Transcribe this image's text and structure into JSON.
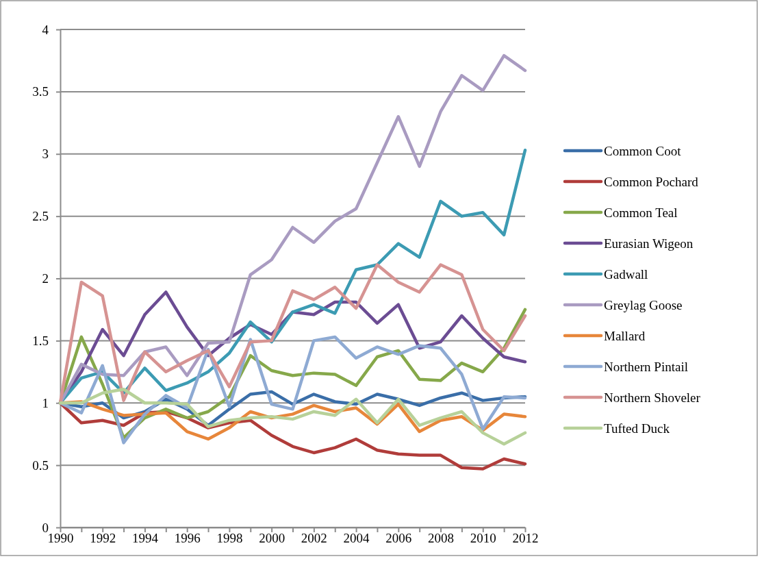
{
  "chart_data": {
    "type": "line",
    "x": [
      1990,
      1991,
      1992,
      1993,
      1994,
      1995,
      1996,
      1997,
      1998,
      1999,
      2000,
      2001,
      2002,
      2003,
      2004,
      2005,
      2006,
      2007,
      2008,
      2009,
      2010,
      2011,
      2012
    ],
    "xlim": [
      1990,
      2012
    ],
    "xticks": [
      1990,
      {
        "value": 1991,
        "label": null
      },
      1992,
      {
        "value": 1993,
        "label": null
      },
      1994,
      {
        "value": 1995,
        "label": null
      },
      1996,
      {
        "value": 1997,
        "label": null
      },
      1998,
      {
        "value": 1999,
        "label": null
      },
      2000,
      {
        "value": 2001,
        "label": null
      },
      2002,
      {
        "value": 2003,
        "label": null
      },
      2004,
      {
        "value": 2005,
        "label": null
      },
      2006,
      {
        "value": 2007,
        "label": null
      },
      2008,
      {
        "value": 2009,
        "label": null
      },
      2010,
      {
        "value": 2011,
        "label": null
      },
      2012
    ],
    "ylim": [
      0,
      4
    ],
    "yticks": [
      0,
      0.5,
      1,
      1.5,
      2,
      2.5,
      3,
      3.5,
      4
    ],
    "grid": "y",
    "legend": "right",
    "marker": "none",
    "line_style": "solid",
    "series": [
      {
        "name": "Common Coot",
        "color": "#3a6ea8",
        "values": [
          1,
          0.97,
          1.0,
          0.88,
          0.93,
          1.03,
          0.95,
          0.82,
          0.95,
          1.07,
          1.09,
          0.99,
          1.07,
          1.01,
          0.99,
          1.07,
          1.03,
          0.98,
          1.04,
          1.08,
          1.02,
          1.04,
          1.05
        ]
      },
      {
        "name": "Common Pochard",
        "color": "#b03c3a",
        "values": [
          1,
          0.84,
          0.86,
          0.82,
          0.92,
          0.93,
          0.88,
          0.8,
          0.84,
          0.86,
          0.74,
          0.65,
          0.6,
          0.64,
          0.71,
          0.62,
          0.59,
          0.58,
          0.58,
          0.48,
          0.47,
          0.55,
          0.51
        ]
      },
      {
        "name": "Common Teal",
        "color": "#86a84a",
        "values": [
          1,
          1.53,
          1.15,
          0.72,
          0.88,
          0.95,
          0.88,
          0.93,
          1.05,
          1.38,
          1.26,
          1.22,
          1.24,
          1.23,
          1.14,
          1.37,
          1.42,
          1.19,
          1.18,
          1.32,
          1.25,
          1.44,
          1.75
        ]
      },
      {
        "name": "Eurasian Wigeon",
        "color": "#6b4c93",
        "values": [
          1,
          1.25,
          1.59,
          1.38,
          1.71,
          1.89,
          1.61,
          1.38,
          1.52,
          1.63,
          1.55,
          1.73,
          1.71,
          1.81,
          1.81,
          1.64,
          1.79,
          1.44,
          1.49,
          1.7,
          1.52,
          1.37,
          1.33
        ]
      },
      {
        "name": "Gadwall",
        "color": "#3c9bb3",
        "values": [
          1,
          1.2,
          1.25,
          1.08,
          1.28,
          1.1,
          1.16,
          1.25,
          1.4,
          1.65,
          1.49,
          1.73,
          1.79,
          1.72,
          2.07,
          2.11,
          2.28,
          2.17,
          2.62,
          2.5,
          2.53,
          2.35,
          3.03
        ]
      },
      {
        "name": "Greylag Goose",
        "color": "#a99bc1",
        "values": [
          1,
          1.31,
          1.23,
          1.22,
          1.41,
          1.45,
          1.22,
          1.48,
          1.49,
          2.03,
          2.15,
          2.41,
          2.29,
          2.46,
          2.56,
          2.93,
          3.3,
          2.9,
          3.34,
          3.63,
          3.51,
          3.79,
          3.67
        ]
      },
      {
        "name": "Mallard",
        "color": "#e7863a",
        "values": [
          1,
          1.01,
          0.95,
          0.9,
          0.91,
          0.92,
          0.77,
          0.71,
          0.8,
          0.93,
          0.88,
          0.91,
          0.98,
          0.93,
          0.96,
          0.83,
          0.99,
          0.77,
          0.86,
          0.89,
          0.78,
          0.91,
          0.89
        ]
      },
      {
        "name": "Northern Pintail",
        "color": "#8eaad3",
        "values": [
          1,
          0.92,
          1.3,
          0.68,
          0.91,
          1.06,
          0.96,
          1.43,
          0.97,
          1.51,
          0.99,
          0.95,
          1.5,
          1.53,
          1.36,
          1.45,
          1.39,
          1.46,
          1.44,
          1.23,
          0.79,
          1.05,
          1.04
        ]
      },
      {
        "name": "Northern Shoveler",
        "color": "#d69392",
        "values": [
          1,
          1.97,
          1.86,
          1.02,
          1.41,
          1.25,
          1.34,
          1.42,
          1.13,
          1.49,
          1.5,
          1.9,
          1.83,
          1.93,
          1.76,
          2.11,
          1.97,
          1.89,
          2.11,
          2.03,
          1.59,
          1.42,
          1.7
        ]
      },
      {
        "name": "Tufted Duck",
        "color": "#b7d199",
        "values": [
          1,
          1.0,
          1.08,
          1.11,
          1.0,
          1.0,
          0.99,
          0.81,
          0.86,
          0.88,
          0.89,
          0.87,
          0.93,
          0.9,
          1.03,
          0.84,
          1.03,
          0.82,
          0.88,
          0.93,
          0.76,
          0.67,
          0.76
        ]
      }
    ]
  }
}
